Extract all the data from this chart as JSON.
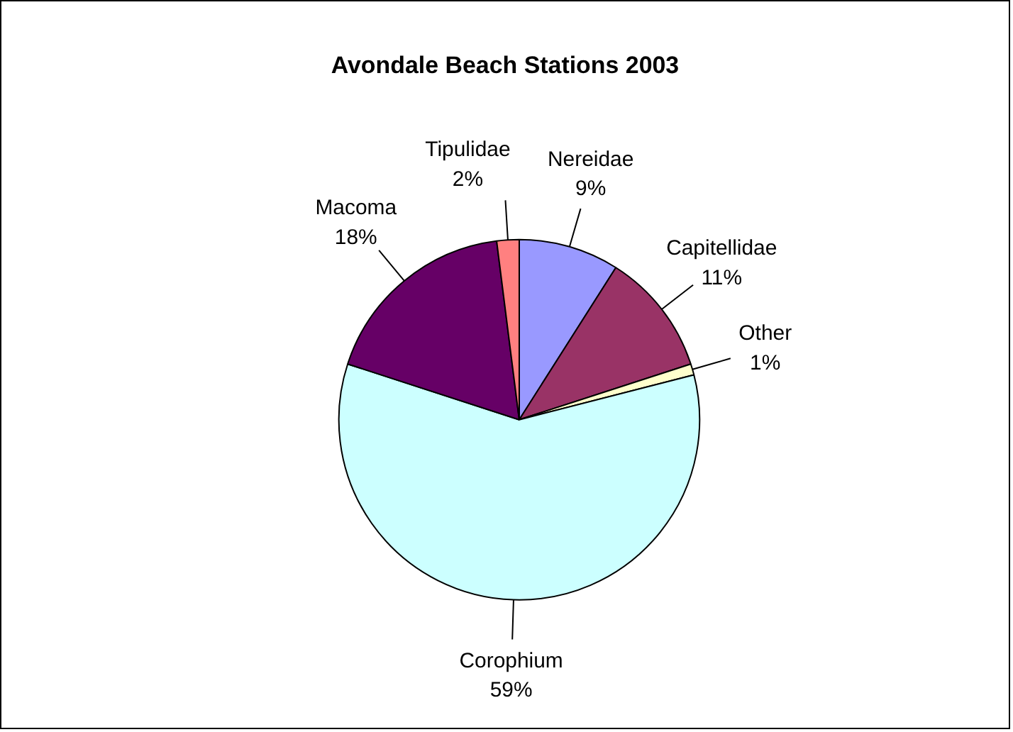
{
  "chart_data": {
    "type": "pie",
    "title": "Avondale Beach Stations 2003",
    "categories": [
      "Nereidae",
      "Capitellidae",
      "Other",
      "Corophium",
      "Macoma",
      "Tipulidae"
    ],
    "values": [
      9,
      11,
      1,
      59,
      18,
      2
    ],
    "colors": [
      "#9999ff",
      "#993366",
      "#ffffcc",
      "#ccffff",
      "#660066",
      "#ff8080"
    ],
    "value_labels": [
      "9%",
      "11%",
      "1%",
      "59%",
      "18%",
      "2%"
    ],
    "legend": false
  }
}
